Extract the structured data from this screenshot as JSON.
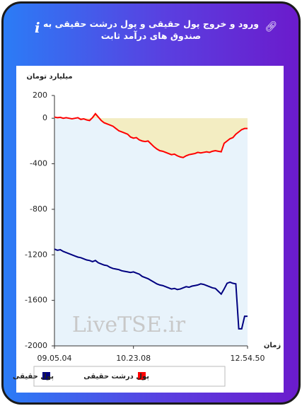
{
  "header": {
    "title": "ورود و خروج پول حقیقی و پول درشت حقیقی به صندوق های درآمد ثابت"
  },
  "chart_data": {
    "type": "line",
    "y_label": "میلیارد تومان",
    "x_label": "زمان",
    "watermark": "LiveTSE.ir",
    "categories": [
      "09.05.04",
      null,
      null,
      null,
      null,
      null,
      null,
      null,
      null,
      null,
      null,
      null,
      null,
      null,
      null,
      null,
      null,
      null,
      null,
      null,
      null,
      null,
      null,
      null,
      null,
      null,
      null,
      "10.23.08",
      null,
      null,
      null,
      null,
      null,
      null,
      null,
      null,
      null,
      null,
      null,
      null,
      null,
      null,
      null,
      null,
      null,
      null,
      null,
      null,
      null,
      null,
      null,
      null,
      null,
      null,
      null,
      null,
      null,
      null,
      null,
      null,
      null,
      null,
      null,
      null,
      null,
      null,
      "12.54.50"
    ],
    "series": [
      {
        "name": "پول حقیقی",
        "color": "#000080",
        "values": [
          -1150,
          -1160,
          -1155,
          -1170,
          -1180,
          -1190,
          -1200,
          -1210,
          -1220,
          -1225,
          -1235,
          -1245,
          -1250,
          -1260,
          -1250,
          -1270,
          -1280,
          -1290,
          -1295,
          -1310,
          -1320,
          -1325,
          -1330,
          -1340,
          -1345,
          -1350,
          -1355,
          -1350,
          -1360,
          -1370,
          -1390,
          -1400,
          -1410,
          -1425,
          -1440,
          -1455,
          -1465,
          -1470,
          -1480,
          -1490,
          -1500,
          -1495,
          -1505,
          -1500,
          -1490,
          -1480,
          -1485,
          -1475,
          -1470,
          -1465,
          -1455,
          -1460,
          -1470,
          -1480,
          -1490,
          -1495,
          -1520,
          -1545,
          -1500,
          -1450,
          -1440,
          -1450,
          -1455,
          -1850,
          -1850,
          -1740,
          -1740
        ]
      },
      {
        "name": "پول درشت حقیقی",
        "color": "#ff0000",
        "fill": "#f3edc2",
        "values": [
          10,
          5,
          8,
          0,
          5,
          0,
          -5,
          0,
          5,
          -10,
          -5,
          -15,
          -20,
          5,
          40,
          10,
          -20,
          -40,
          -50,
          -60,
          -70,
          -90,
          -110,
          -120,
          -130,
          -140,
          -165,
          -175,
          -170,
          -190,
          -200,
          -205,
          -200,
          -225,
          -250,
          -270,
          -285,
          -290,
          -300,
          -310,
          -320,
          -315,
          -330,
          -340,
          -345,
          -330,
          -320,
          -315,
          -310,
          -300,
          -305,
          -300,
          -295,
          -300,
          -290,
          -285,
          -290,
          -295,
          -220,
          -200,
          -180,
          -170,
          -140,
          -120,
          -100,
          -90,
          -90
        ]
      }
    ],
    "ylim": [
      -2000,
      200
    ],
    "yticks": [
      -2000,
      -1600,
      -1200,
      -800,
      -400,
      0,
      200
    ]
  }
}
